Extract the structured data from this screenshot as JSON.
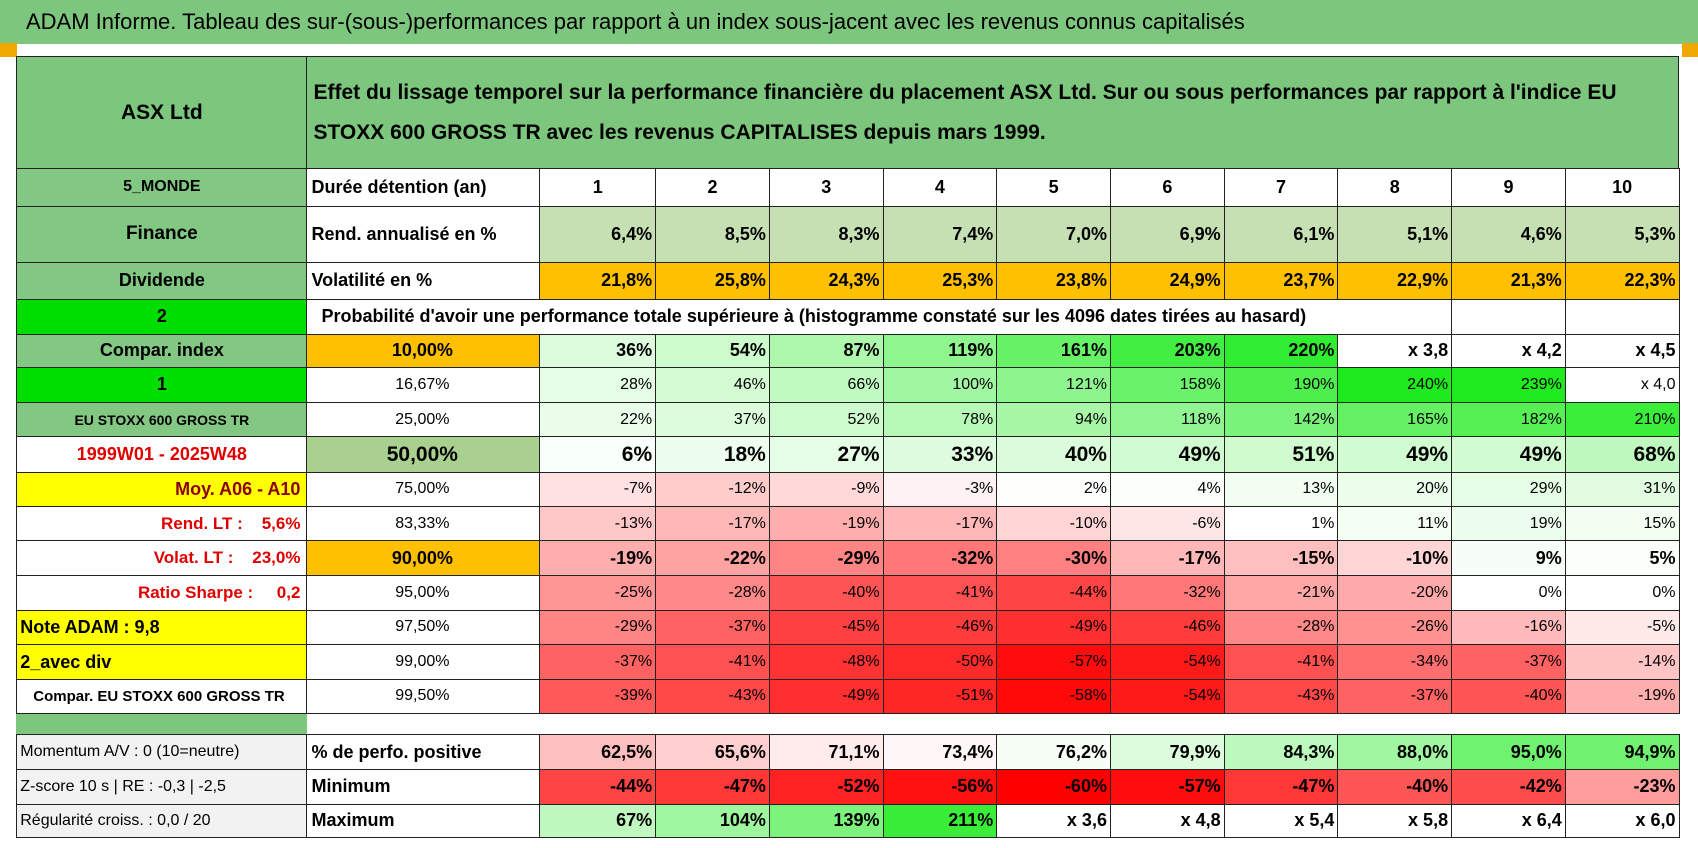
{
  "title": "ADAM Informe. Tableau des sur-(sous-)performances par rapport à un index sous-jacent avec les revenus connus capitalisés",
  "header": {
    "left": "ASX Ltd",
    "description": "Effet du lissage temporel sur la performance financière du placement ASX Ltd. Sur ou sous performances par rapport à l'indice EU STOXX 600 GROSS TR avec les revenus CAPITALISES depuis mars 1999."
  },
  "rows": [
    {
      "label": "5_MONDE",
      "name": "Durée détention (an)",
      "cells": [
        1,
        2,
        3,
        4,
        5,
        6,
        7,
        8,
        9,
        10
      ]
    },
    {
      "label": "Finance",
      "name": "Rend. annualisé en %",
      "cells": [
        "6,4%",
        "8,5%",
        "8,3%",
        "7,4%",
        "7,0%",
        "6,9%",
        "6,1%",
        "5,1%",
        "4,6%",
        "5,3%"
      ]
    },
    {
      "label": "Dividende",
      "name": "Volatilité en %",
      "cells": [
        "21,8%",
        "25,8%",
        "24,3%",
        "25,3%",
        "23,8%",
        "24,9%",
        "23,7%",
        "22,9%",
        "21,3%",
        "22,3%"
      ]
    },
    {
      "label": "2",
      "note": "Probabilité d'avoir une performance totale supérieure à (histogramme constaté sur les 4096 dates tirées au hasard)"
    },
    {
      "label": "Compar. index",
      "name": "10,00%",
      "cells": [
        "36%",
        "54%",
        "87%",
        "119%",
        "161%",
        "203%",
        "220%",
        "x 3,8",
        "x 4,2",
        "x 4,5"
      ]
    },
    {
      "label": "1",
      "name": "16,67%",
      "cells": [
        "28%",
        "46%",
        "66%",
        "100%",
        "121%",
        "158%",
        "190%",
        "240%",
        "239%",
        "x 4,0"
      ]
    },
    {
      "label": "EU STOXX 600 GROSS TR",
      "name": "25,00%",
      "cells": [
        "22%",
        "37%",
        "52%",
        "78%",
        "94%",
        "118%",
        "142%",
        "165%",
        "182%",
        "210%"
      ]
    },
    {
      "label": "1999W01 - 2025W48",
      "name": "50,00%",
      "cells": [
        "6%",
        "18%",
        "27%",
        "33%",
        "40%",
        "49%",
        "51%",
        "49%",
        "49%",
        "68%"
      ]
    },
    {
      "label": "Moy. A06 - A10",
      "name": "75,00%",
      "cells": [
        "-7%",
        "-12%",
        "-9%",
        "-3%",
        "2%",
        "4%",
        "13%",
        "20%",
        "29%",
        "31%"
      ]
    },
    {
      "label": "Rend. LT :    5,6%",
      "name": "83,33%",
      "cells": [
        "-13%",
        "-17%",
        "-19%",
        "-17%",
        "-10%",
        "-6%",
        "1%",
        "11%",
        "19%",
        "15%"
      ]
    },
    {
      "label": "Volat. LT :    23,0%",
      "name": "90,00%",
      "cells": [
        "-19%",
        "-22%",
        "-29%",
        "-32%",
        "-30%",
        "-17%",
        "-15%",
        "-10%",
        "9%",
        "5%"
      ]
    },
    {
      "label": "Ratio Sharpe :     0,2",
      "name": "95,00%",
      "cells": [
        "-25%",
        "-28%",
        "-40%",
        "-41%",
        "-44%",
        "-32%",
        "-21%",
        "-20%",
        "0%",
        "0%"
      ]
    },
    {
      "label": "Note ADAM : 9,8",
      "name": "97,50%",
      "cells": [
        "-29%",
        "-37%",
        "-45%",
        "-46%",
        "-49%",
        "-46%",
        "-28%",
        "-26%",
        "-16%",
        "-5%"
      ]
    },
    {
      "label": "2_avec div",
      "name": "99,00%",
      "cells": [
        "-37%",
        "-41%",
        "-48%",
        "-50%",
        "-57%",
        "-54%",
        "-41%",
        "-34%",
        "-37%",
        "-14%"
      ]
    },
    {
      "label": "Compar. EU STOXX 600 GROSS TR",
      "name": "99,50%",
      "cells": [
        "-39%",
        "-43%",
        "-49%",
        "-51%",
        "-58%",
        "-54%",
        "-43%",
        "-37%",
        "-40%",
        "-19%"
      ]
    },
    {
      "label": "Momentum A/V : 0 (10=neutre)",
      "name": "% de perfo. positive",
      "cells": [
        "62,5%",
        "65,6%",
        "71,1%",
        "73,4%",
        "76,2%",
        "79,9%",
        "84,3%",
        "88,0%",
        "95,0%",
        "94,9%"
      ]
    },
    {
      "label": "Z-score 10 s | RE : -0,3 | -2,5",
      "name": "Minimum",
      "cells": [
        "-44%",
        "-47%",
        "-52%",
        "-56%",
        "-60%",
        "-57%",
        "-47%",
        "-40%",
        "-42%",
        "-23%"
      ]
    },
    {
      "label": "Régularité croiss. : 0,0 / 20",
      "name": "Maximum",
      "cells": [
        "67%",
        "104%",
        "139%",
        "211%",
        "x 3,6",
        "x 4,8",
        "x 5,4",
        "x 5,8",
        "x 6,4",
        "x 6,0"
      ]
    }
  ]
}
